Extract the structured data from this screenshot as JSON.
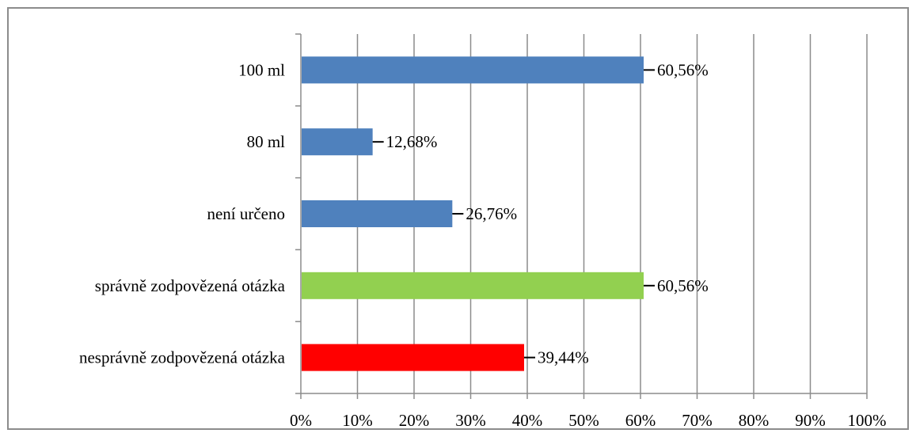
{
  "chart_data": {
    "type": "bar",
    "orientation": "horizontal",
    "title": "",
    "xlabel": "",
    "ylabel": "",
    "categories": [
      "100 ml",
      "80 ml",
      "není určeno",
      "správně zodpovězená otázka",
      "nesprávně zodpovězená otázka"
    ],
    "values": [
      60.56,
      12.68,
      26.76,
      60.56,
      39.44
    ],
    "data_labels": [
      "60,56%",
      "12,68%",
      "26,76%",
      "60,56%",
      "39,44%"
    ],
    "colors": [
      "#4f81bd",
      "#4f81bd",
      "#4f81bd",
      "#92d050",
      "#ff0000"
    ],
    "xlim": [
      0,
      100
    ],
    "xticks": [
      0,
      10,
      20,
      30,
      40,
      50,
      60,
      70,
      80,
      90,
      100
    ],
    "xtick_labels": [
      "0%",
      "10%",
      "20%",
      "30%",
      "40%",
      "50%",
      "60%",
      "70%",
      "80%",
      "90%",
      "100%"
    ],
    "grid": "vertical",
    "legend": "none"
  }
}
